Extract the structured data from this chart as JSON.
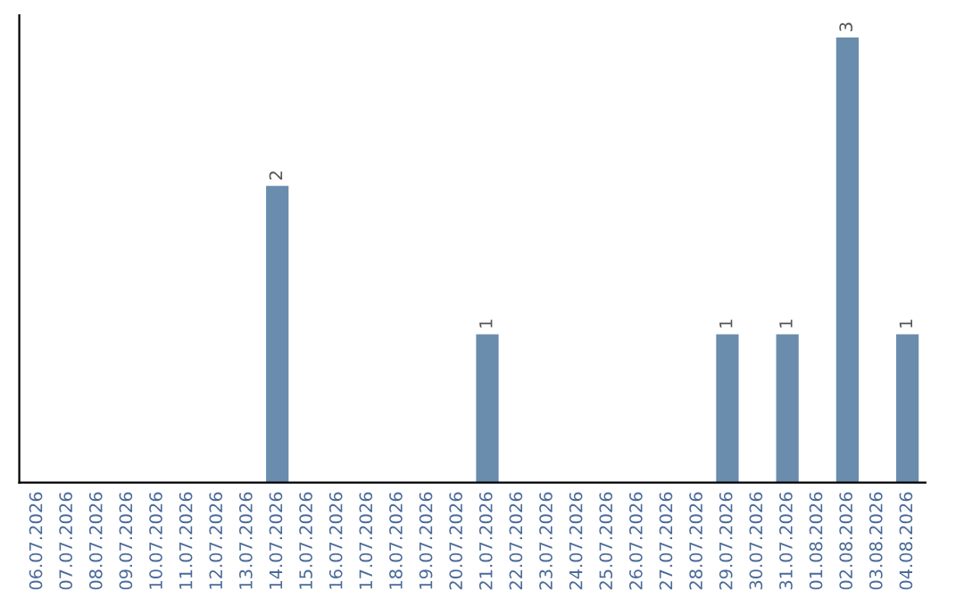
{
  "chart_data": {
    "type": "bar",
    "categories": [
      "06.07.2026",
      "07.07.2026",
      "08.07.2026",
      "09.07.2026",
      "10.07.2026",
      "11.07.2026",
      "12.07.2026",
      "13.07.2026",
      "14.07.2026",
      "15.07.2026",
      "16.07.2026",
      "17.07.2026",
      "18.07.2026",
      "19.07.2026",
      "20.07.2026",
      "21.07.2026",
      "22.07.2026",
      "23.07.2026",
      "24.07.2026",
      "25.07.2026",
      "26.07.2026",
      "27.07.2026",
      "28.07.2026",
      "29.07.2026",
      "30.07.2026",
      "31.07.2026",
      "01.08.2026",
      "02.08.2026",
      "03.08.2026",
      "04.08.2026"
    ],
    "values": [
      0,
      0,
      0,
      0,
      0,
      0,
      0,
      0,
      2,
      0,
      0,
      0,
      0,
      0,
      0,
      1,
      0,
      0,
      0,
      0,
      0,
      0,
      0,
      1,
      0,
      1,
      0,
      3,
      0,
      1
    ],
    "value_labels": [
      null,
      null,
      null,
      null,
      null,
      null,
      null,
      null,
      "2",
      null,
      null,
      null,
      null,
      null,
      null,
      "1",
      null,
      null,
      null,
      null,
      null,
      null,
      null,
      "1",
      null,
      "1",
      null,
      "3",
      null,
      "1"
    ],
    "color": "#6a8cad",
    "tick_labels": "x",
    "grid": false,
    "legend": false
  }
}
